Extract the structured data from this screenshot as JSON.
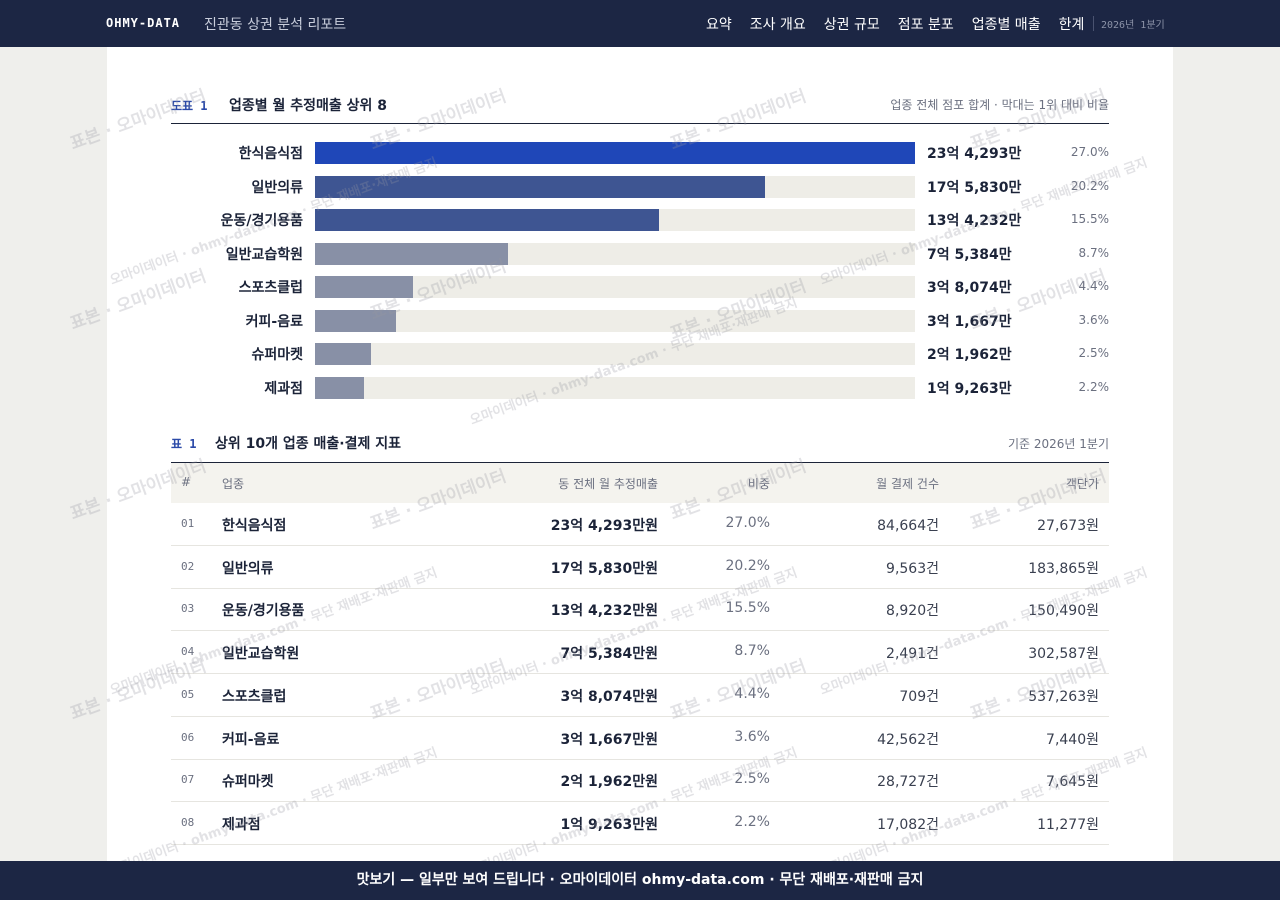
{
  "nav": {
    "brand": "OHMY-DATA",
    "report": "진관동 상권 분석 리포트",
    "links": [
      "요약",
      "조사 개요",
      "상권 규모",
      "점포 분포",
      "업종별 매출",
      "한계"
    ],
    "period": "2026년 1분기"
  },
  "figure": {
    "label": "도표 1",
    "title": "업종별 월 추정매출 상위 8",
    "note": "업종 전체 점포 합계 · 막대는 1위 대비 비율",
    "chart_data": {
      "type": "bar",
      "orientation": "horizontal",
      "categories": [
        "한식음식점",
        "일반의류",
        "운동/경기용품",
        "일반교습학원",
        "스포츠클럽",
        "커피-음료",
        "슈퍼마켓",
        "제과점"
      ],
      "values": [
        234293,
        175830,
        134232,
        75384,
        38074,
        31667,
        21962,
        19263
      ],
      "value_labels": [
        "23억 4,293만",
        "17억 5,830만",
        "13억 4,232만",
        "7억 5,384만",
        "3억 8,074만",
        "3억 1,667만",
        "2억 1,962만",
        "1억 9,263만"
      ],
      "shares": [
        "27.0%",
        "20.2%",
        "15.5%",
        "8.7%",
        "4.4%",
        "3.6%",
        "2.5%",
        "2.2%"
      ],
      "colors": [
        "#1f47b8",
        "#3e5592",
        "#3e5592",
        "#8890a6",
        "#8890a6",
        "#8890a6",
        "#8890a6",
        "#8890a6"
      ],
      "track_color": "#eeede7"
    }
  },
  "table": {
    "label": "표 1",
    "title": "상위 10개 업종 매출·결제 지표",
    "note": "기준 2026년 1분기",
    "header": [
      "#",
      "업종",
      "동 전체 월 추정매출",
      "비중",
      "월 결제 건수",
      "객단가"
    ],
    "rows": [
      [
        "01",
        "한식음식점",
        "23억 4,293만원",
        "27.0%",
        "84,664건",
        "27,673원"
      ],
      [
        "02",
        "일반의류",
        "17억 5,830만원",
        "20.2%",
        "9,563건",
        "183,865원"
      ],
      [
        "03",
        "운동/경기용품",
        "13억 4,232만원",
        "15.5%",
        "8,920건",
        "150,490원"
      ],
      [
        "04",
        "일반교습학원",
        "7억 5,384만원",
        "8.7%",
        "2,491건",
        "302,587원"
      ],
      [
        "05",
        "스포츠클럽",
        "3억 8,074만원",
        "4.4%",
        "709건",
        "537,263원"
      ],
      [
        "06",
        "커피-음료",
        "3억 1,667만원",
        "3.6%",
        "42,562건",
        "7,440원"
      ],
      [
        "07",
        "슈퍼마켓",
        "2억 1,962만원",
        "2.5%",
        "28,727건",
        "7,645원"
      ],
      [
        "08",
        "제과점",
        "1억 9,263만원",
        "2.2%",
        "17,082건",
        "11,277원"
      ]
    ]
  },
  "footer": "맛보기 — 일부만 보여 드립니다 · 오마이데이터 ohmy-data.com · 무단 재배포·재판매 금지",
  "watermarks": [
    "표본 · 오마이데이터",
    "오마이데이터 · ohmy-data.com · 무단 재배포·재판매 금지"
  ]
}
